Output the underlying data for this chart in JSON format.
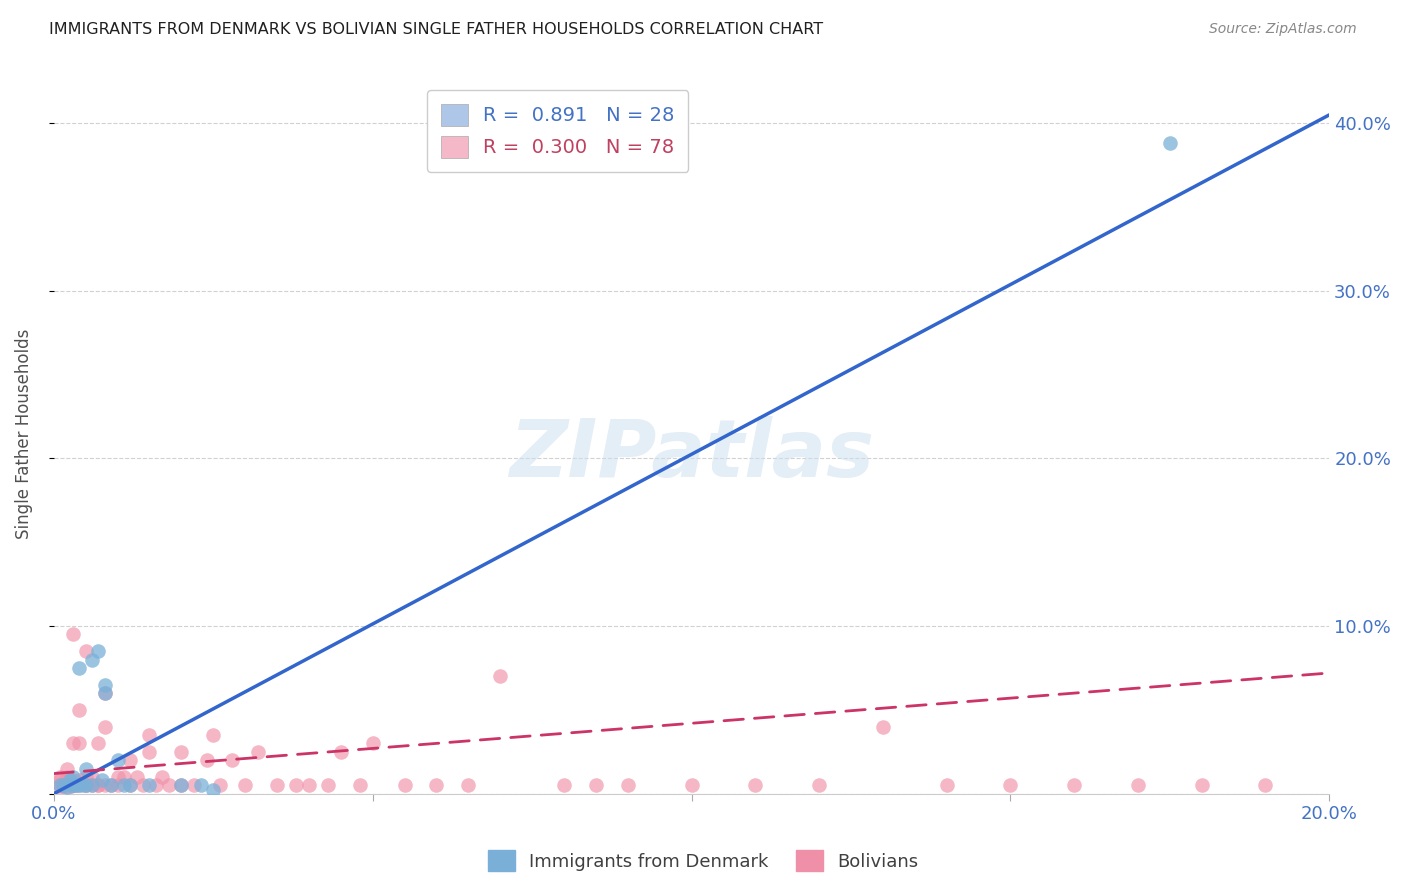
{
  "title": "IMMIGRANTS FROM DENMARK VS BOLIVIAN SINGLE FATHER HOUSEHOLDS CORRELATION CHART",
  "source": "Source: ZipAtlas.com",
  "ylabel": "Single Father Households",
  "ytick_values": [
    0.0,
    0.1,
    0.2,
    0.3,
    0.4
  ],
  "xtick_values": [
    0.0,
    0.05,
    0.1,
    0.15,
    0.2
  ],
  "xtick_labels": [
    "0.0%",
    "",
    "",
    "",
    "20.0%"
  ],
  "xlim": [
    0.0,
    0.2
  ],
  "ylim": [
    0.0,
    0.43
  ],
  "legend_entries": [
    {
      "label": "R =  0.891   N = 28",
      "patch_color": "#aec6e8",
      "text_color": "#4472c4"
    },
    {
      "label": "R =  0.300   N = 78",
      "patch_color": "#f4b8c8",
      "text_color": "#c04060"
    }
  ],
  "legend_label_denmark": "Immigrants from Denmark",
  "legend_label_bolivians": "Bolivians",
  "watermark_text": "ZIPatlas",
  "denmark_color": "#7ab0d8",
  "bolivian_color": "#f090a8",
  "denmark_line_color": "#3366cc",
  "bolivian_line_color": "#cc3366",
  "denmark_scatter_x": [
    0.001,
    0.0015,
    0.002,
    0.0025,
    0.003,
    0.003,
    0.003,
    0.0035,
    0.004,
    0.004,
    0.0045,
    0.005,
    0.005,
    0.006,
    0.006,
    0.007,
    0.0075,
    0.008,
    0.008,
    0.009,
    0.01,
    0.011,
    0.012,
    0.015,
    0.02,
    0.023,
    0.025,
    0.175
  ],
  "denmark_scatter_y": [
    0.005,
    0.005,
    0.004,
    0.008,
    0.005,
    0.01,
    0.005,
    0.005,
    0.005,
    0.075,
    0.005,
    0.005,
    0.015,
    0.005,
    0.08,
    0.085,
    0.008,
    0.06,
    0.065,
    0.005,
    0.02,
    0.005,
    0.005,
    0.005,
    0.005,
    0.005,
    0.002,
    0.388
  ],
  "bolivian_scatter_x": [
    0.001,
    0.001,
    0.001,
    0.001,
    0.0015,
    0.002,
    0.002,
    0.002,
    0.002,
    0.0025,
    0.003,
    0.003,
    0.003,
    0.0035,
    0.004,
    0.004,
    0.004,
    0.005,
    0.005,
    0.005,
    0.006,
    0.006,
    0.007,
    0.007,
    0.008,
    0.008,
    0.009,
    0.01,
    0.01,
    0.011,
    0.012,
    0.013,
    0.014,
    0.015,
    0.015,
    0.016,
    0.017,
    0.018,
    0.02,
    0.02,
    0.022,
    0.024,
    0.025,
    0.026,
    0.028,
    0.03,
    0.032,
    0.035,
    0.038,
    0.04,
    0.043,
    0.045,
    0.048,
    0.05,
    0.055,
    0.06,
    0.065,
    0.07,
    0.08,
    0.085,
    0.09,
    0.1,
    0.11,
    0.12,
    0.13,
    0.14,
    0.15,
    0.16,
    0.17,
    0.18,
    0.19,
    0.003,
    0.003,
    0.004,
    0.005,
    0.007,
    0.008,
    0.012
  ],
  "bolivian_scatter_y": [
    0.005,
    0.008,
    0.01,
    0.003,
    0.005,
    0.005,
    0.01,
    0.015,
    0.003,
    0.005,
    0.005,
    0.008,
    0.095,
    0.005,
    0.005,
    0.008,
    0.03,
    0.005,
    0.01,
    0.085,
    0.005,
    0.01,
    0.005,
    0.03,
    0.005,
    0.04,
    0.005,
    0.005,
    0.01,
    0.01,
    0.02,
    0.01,
    0.005,
    0.025,
    0.035,
    0.005,
    0.01,
    0.005,
    0.025,
    0.005,
    0.005,
    0.02,
    0.035,
    0.005,
    0.02,
    0.005,
    0.025,
    0.005,
    0.005,
    0.005,
    0.005,
    0.025,
    0.005,
    0.03,
    0.005,
    0.005,
    0.005,
    0.07,
    0.005,
    0.005,
    0.005,
    0.005,
    0.005,
    0.005,
    0.04,
    0.005,
    0.005,
    0.005,
    0.005,
    0.005,
    0.005,
    0.005,
    0.03,
    0.05,
    0.005,
    0.005,
    0.06,
    0.005
  ],
  "denmark_line": {
    "x0": 0.0,
    "y0": 0.0,
    "x1": 0.2,
    "y1": 0.405
  },
  "bolivian_line": {
    "x0": 0.0,
    "y0": 0.012,
    "x1": 0.2,
    "y1": 0.072
  },
  "background_color": "#ffffff",
  "grid_color": "#cccccc",
  "title_color": "#202020",
  "axis_label_color": "#505050",
  "tick_color": "#4472c4"
}
